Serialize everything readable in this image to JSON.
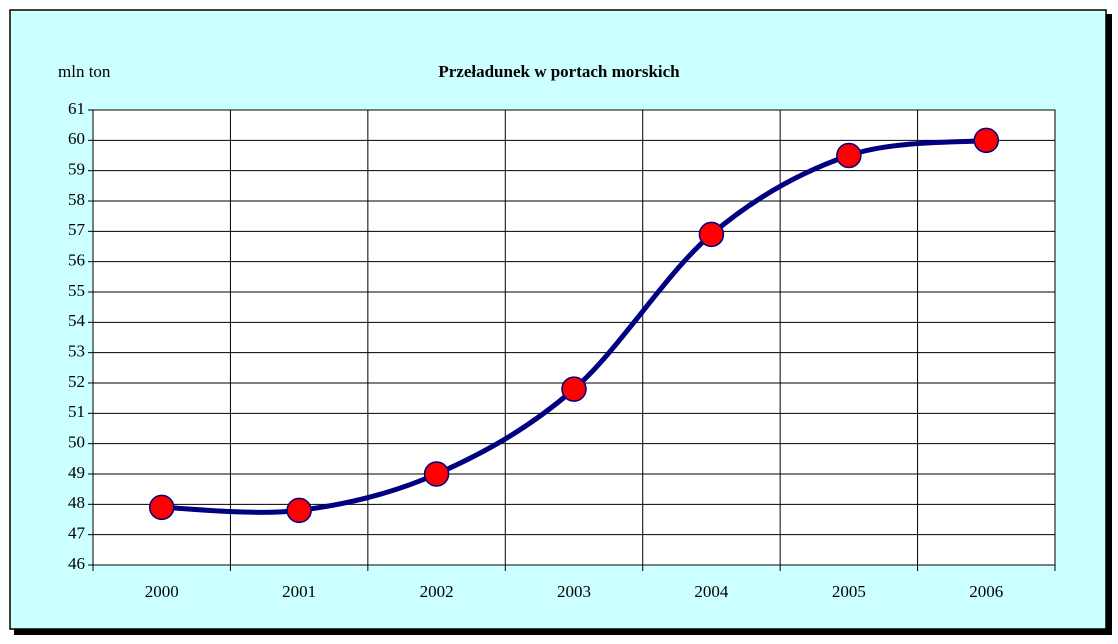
{
  "chart_data": {
    "type": "line",
    "title": "Przeładunek w portach morskich",
    "y_label": "mln ton",
    "categories": [
      "2000",
      "2001",
      "2002",
      "2003",
      "2004",
      "2005",
      "2006"
    ],
    "series": [
      {
        "name": "Przeładunek",
        "color": "#000080",
        "marker_color": "#ff0000",
        "values": [
          47.9,
          47.8,
          49.0,
          51.8,
          56.9,
          59.5,
          60.0
        ]
      }
    ],
    "ylim": [
      46,
      61
    ],
    "yticks": [
      46,
      47,
      48,
      49,
      50,
      51,
      52,
      53,
      54,
      55,
      56,
      57,
      58,
      59,
      60,
      61
    ],
    "grid": true
  }
}
